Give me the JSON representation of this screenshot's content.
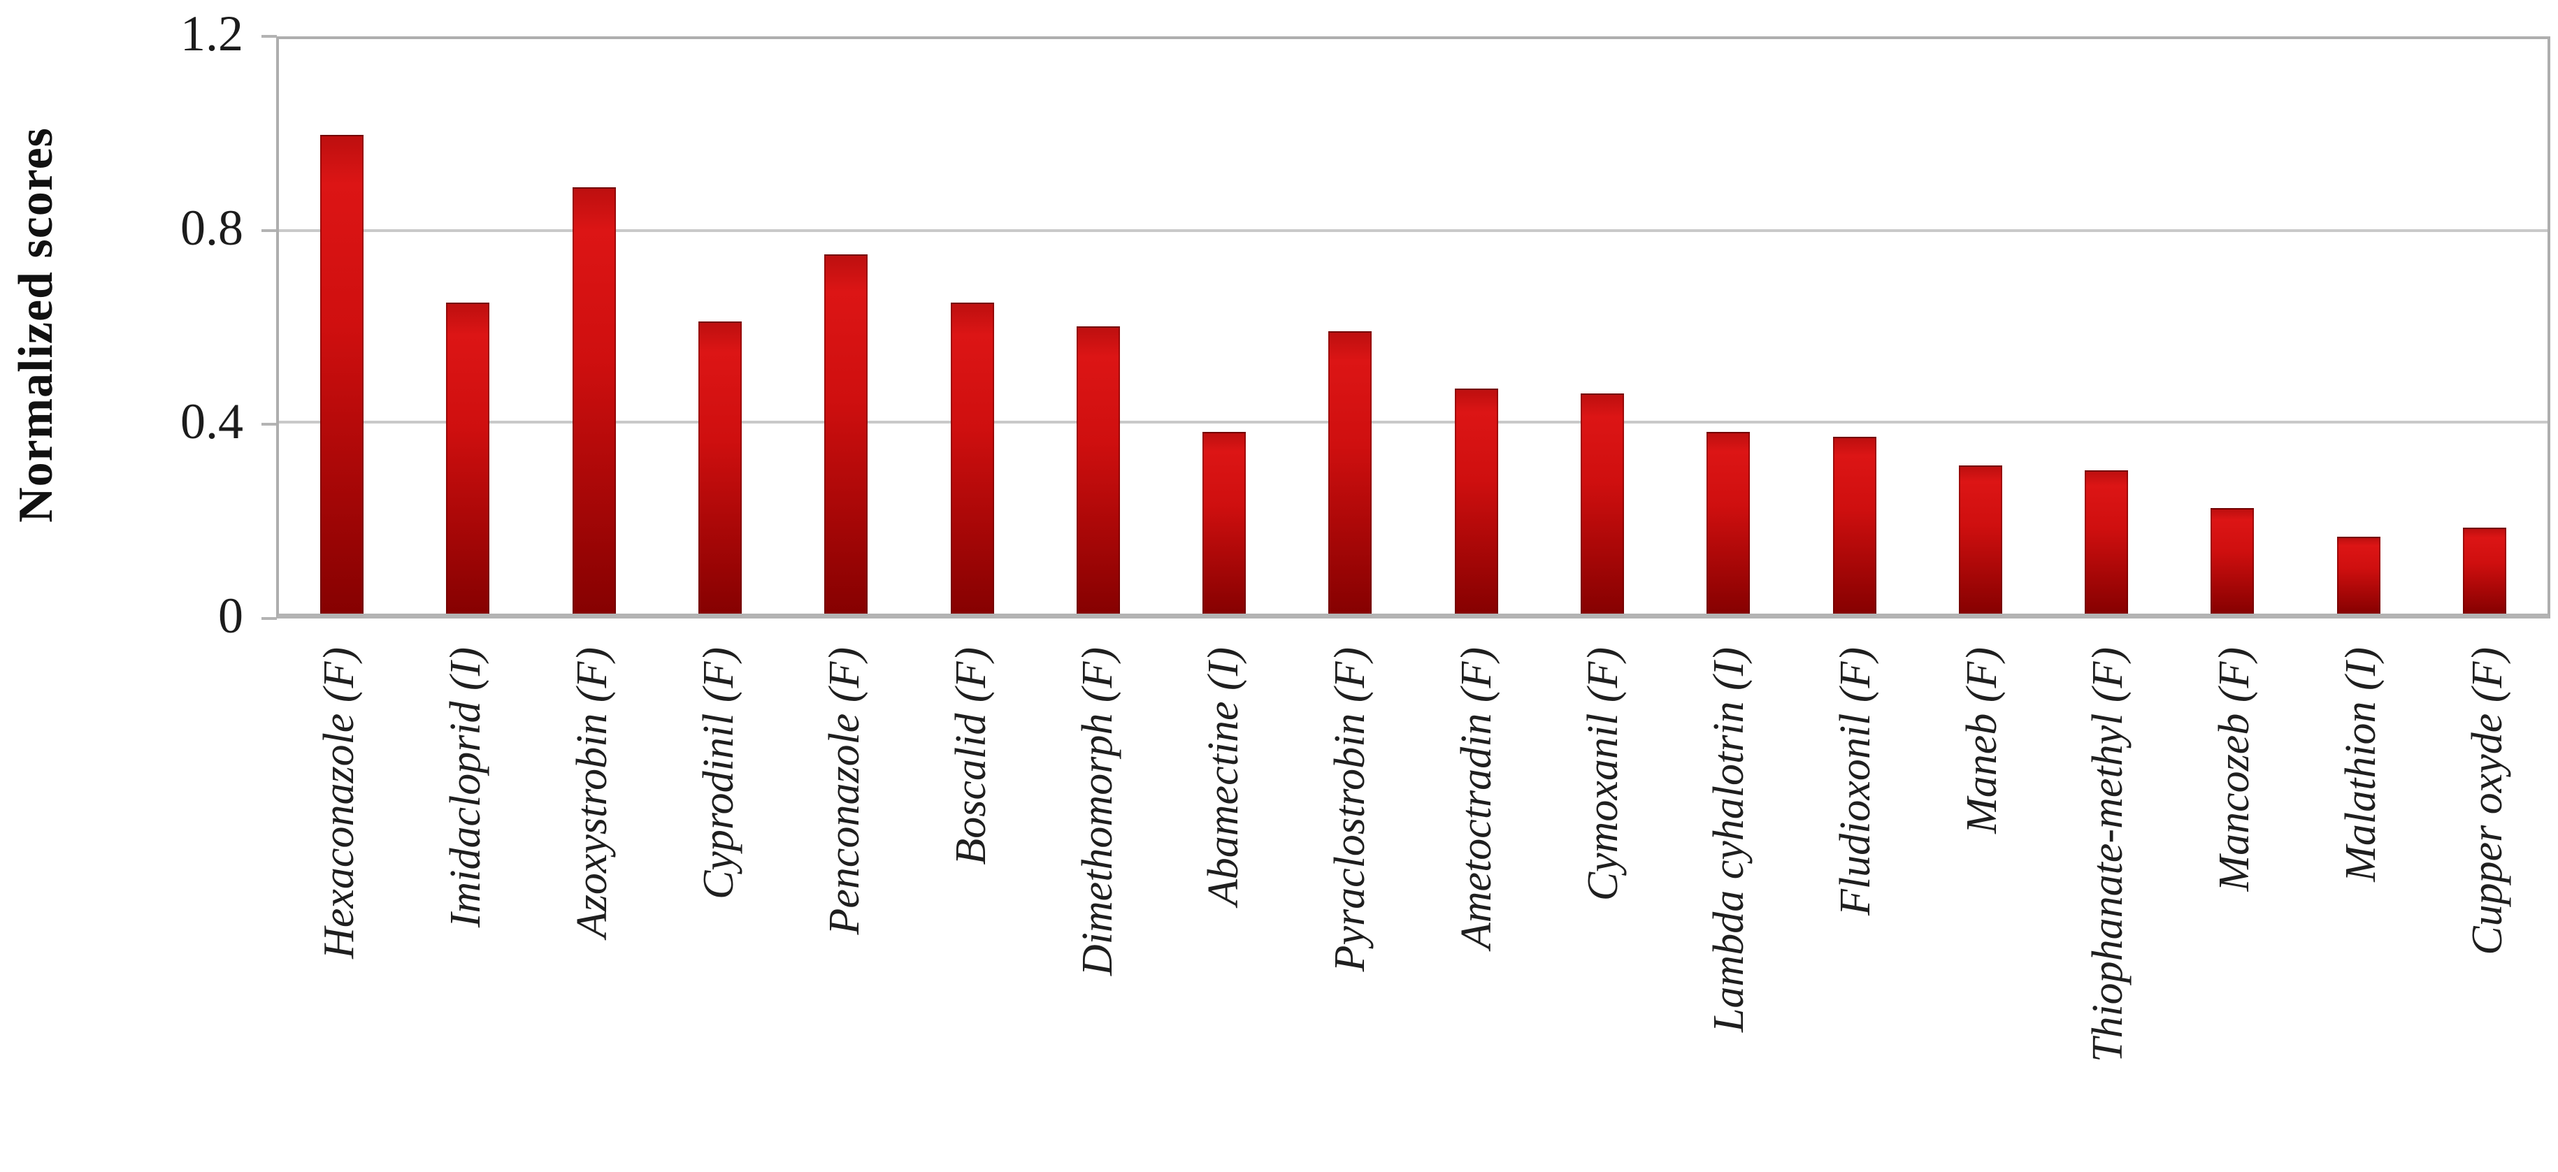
{
  "chart_data": {
    "type": "bar",
    "title": "",
    "xlabel": "",
    "ylabel": "Normalized scores",
    "ylim": [
      0,
      1.2
    ],
    "yticks": [
      0,
      0.4,
      0.8,
      1.2
    ],
    "ytick_labels": [
      "0",
      "0.4",
      "0.8",
      "1.2"
    ],
    "grid": "horizontal",
    "legend": "none",
    "categories": [
      "Hexaconazole (F)",
      "Imidacloprid (I)",
      "Azoxystrobin (F)",
      "Cyprodinil (F)",
      "Penconazole (F)",
      "Boscalid (F)",
      "Dimethomorph (F)",
      "Abamectine (I)",
      "Pyraclostrobin (F)",
      "Ametoctradin (F)",
      "Cymoxanil (F)",
      "Lambda cyhalotrin (I)",
      "Fludioxonil (F)",
      "Maneb (F)",
      "Thiophanate-methyl (F)",
      "Mancozeb (F)",
      "Malathion (I)",
      "Cupper oxyde (F)"
    ],
    "values": [
      1.0,
      0.65,
      0.89,
      0.61,
      0.75,
      0.65,
      0.6,
      0.38,
      0.59,
      0.47,
      0.46,
      0.38,
      0.37,
      0.31,
      0.3,
      0.22,
      0.16,
      0.18
    ]
  },
  "colors": {
    "bar_top": "#dc1515",
    "bar_bottom": "#860101",
    "gridline": "#c9c9c9",
    "plot_border": "#aeaeae",
    "text": "#1c1c1c",
    "background": "#ffffff"
  }
}
